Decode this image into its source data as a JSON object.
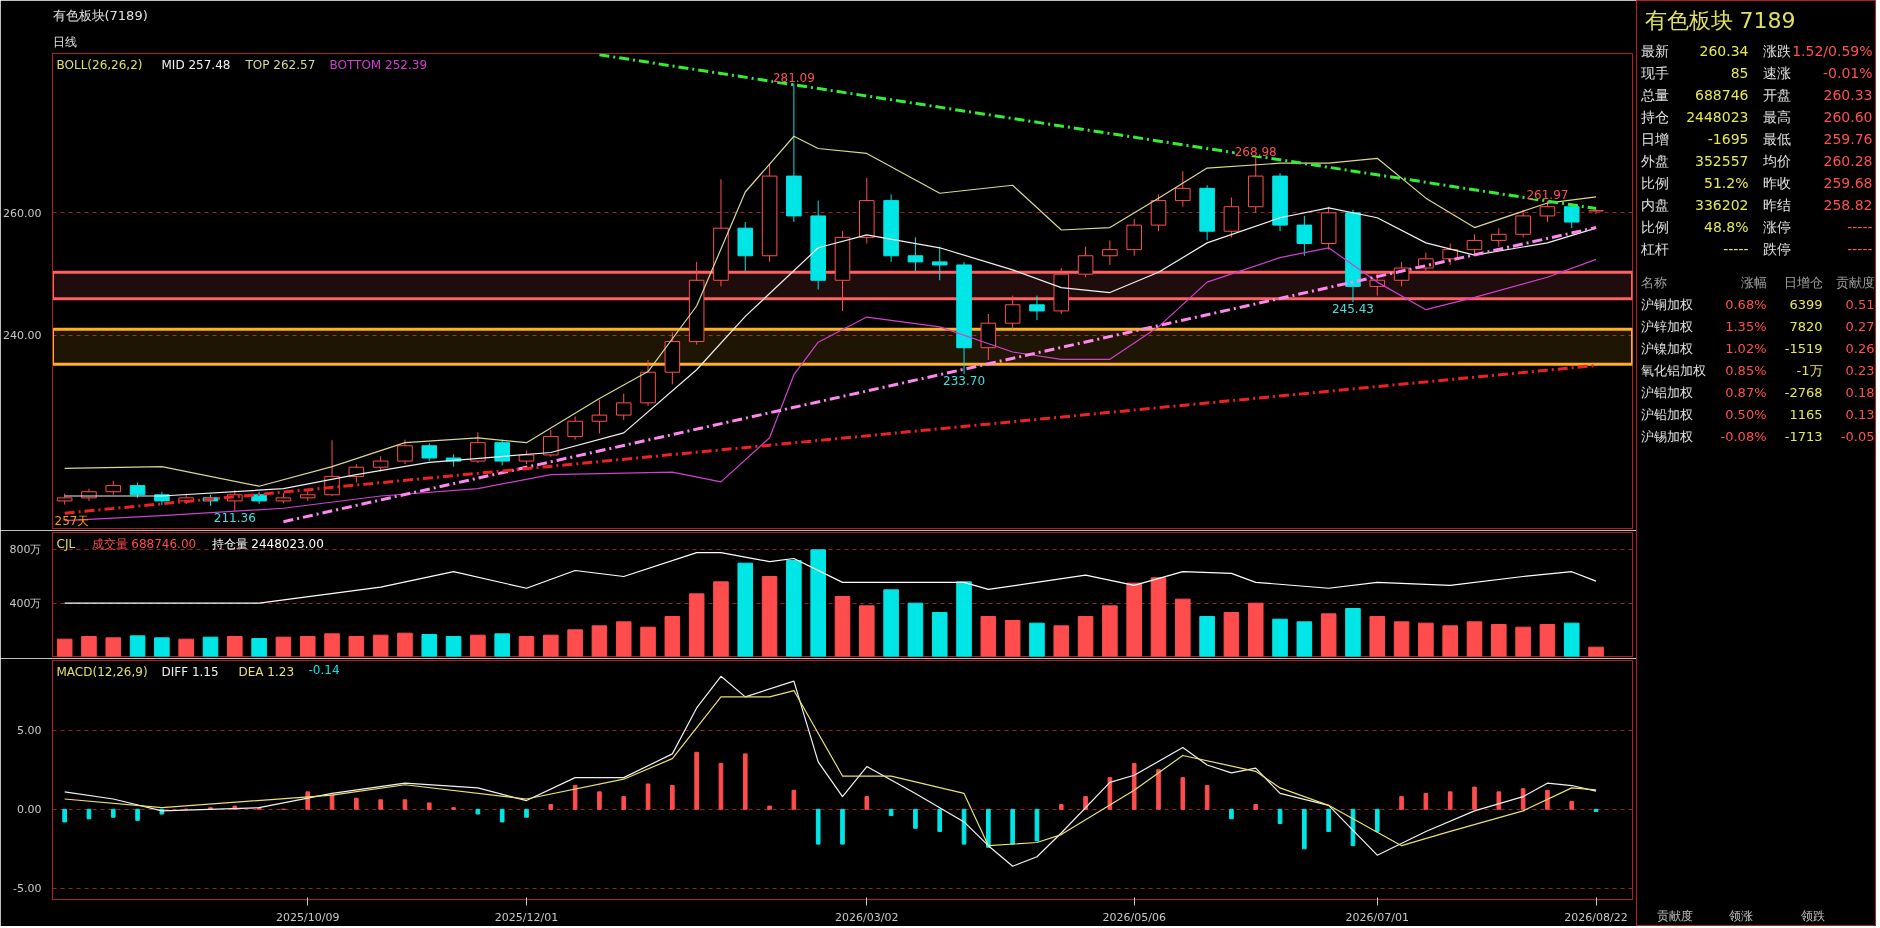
{
  "chart_data": [
    {
      "type": "candlestick",
      "title": "有色板块(7189)",
      "subtitle": "日线",
      "categories": [
        null,
        null,
        null,
        null,
        null,
        null,
        null,
        null,
        null,
        null,
        null,
        null,
        null,
        null,
        null,
        null,
        null,
        null,
        null,
        null,
        null,
        null,
        null,
        null,
        null,
        null,
        null,
        null,
        null,
        null,
        null,
        null,
        null,
        null,
        null,
        null,
        null,
        null,
        null,
        null,
        null,
        null,
        null,
        null,
        null,
        null,
        null,
        null,
        null,
        null,
        null,
        null,
        null,
        null,
        null,
        null,
        null,
        null,
        null,
        null,
        null,
        null,
        null,
        null
      ],
      "ohlc": [
        [
          213.0,
          214.2,
          212.4,
          213.5
        ],
        [
          213.5,
          215.0,
          213.0,
          214.5
        ],
        [
          214.5,
          216.3,
          214.0,
          215.5
        ],
        [
          215.5,
          216.0,
          213.5,
          214.0
        ],
        [
          214.0,
          214.5,
          212.3,
          213.0
        ],
        [
          213.0,
          214.2,
          212.5,
          213.5
        ],
        [
          213.5,
          214.0,
          212.2,
          213.0
        ],
        [
          213.0,
          214.8,
          211.36,
          214.0
        ],
        [
          214.0,
          214.5,
          212.5,
          213.0
        ],
        [
          213.0,
          214.3,
          212.6,
          213.5
        ],
        [
          213.5,
          214.6,
          213.0,
          214.0
        ],
        [
          214.0,
          222.9,
          213.8,
          217.0
        ],
        [
          217.0,
          219.0,
          216.0,
          218.5
        ],
        [
          218.5,
          220.3,
          217.8,
          219.5
        ],
        [
          219.5,
          223.0,
          219.0,
          222.0
        ],
        [
          222.0,
          222.4,
          219.5,
          220.0
        ],
        [
          220.0,
          220.6,
          218.6,
          219.5
        ],
        [
          219.5,
          224.2,
          219.2,
          222.5
        ],
        [
          222.5,
          223.0,
          218.8,
          219.5
        ],
        [
          219.5,
          221.2,
          219.0,
          220.5
        ],
        [
          220.5,
          224.6,
          220.2,
          223.5
        ],
        [
          223.5,
          226.8,
          223.0,
          226.0
        ],
        [
          226.0,
          229.5,
          224.0,
          227.0
        ],
        [
          227.0,
          230.5,
          226.2,
          229.0
        ],
        [
          229.0,
          236.0,
          228.5,
          234.0
        ],
        [
          234.0,
          240.5,
          232.0,
          239.0
        ],
        [
          239.0,
          252.0,
          238.5,
          249.0
        ],
        [
          249.0,
          265.5,
          248.0,
          257.5
        ],
        [
          257.5,
          258.5,
          250.5,
          253.0
        ],
        [
          253.0,
          268.0,
          252.0,
          266.0
        ],
        [
          266.0,
          281.09,
          258.5,
          259.5
        ],
        [
          259.5,
          262.0,
          247.5,
          249.0
        ],
        [
          249.0,
          257.0,
          244.0,
          256.0
        ],
        [
          256.0,
          265.7,
          255.0,
          262.0
        ],
        [
          262.0,
          263.0,
          252.0,
          253.0
        ],
        [
          253.0,
          256.0,
          250.5,
          252.0
        ],
        [
          252.0,
          254.5,
          249.0,
          251.5
        ],
        [
          251.5,
          252.0,
          233.7,
          238.0
        ],
        [
          238.0,
          243.5,
          236.0,
          242.0
        ],
        [
          242.0,
          246.5,
          241.0,
          245.0
        ],
        [
          245.0,
          246.5,
          242.5,
          244.0
        ],
        [
          244.0,
          251.0,
          243.5,
          250.0
        ],
        [
          250.0,
          254.5,
          249.5,
          253.0
        ],
        [
          253.0,
          255.5,
          251.5,
          254.0
        ],
        [
          254.0,
          259.0,
          253.0,
          258.0
        ],
        [
          258.0,
          263.0,
          257.0,
          262.0
        ],
        [
          262.0,
          266.8,
          261.0,
          264.0
        ],
        [
          264.0,
          264.5,
          255.5,
          257.0
        ],
        [
          257.0,
          262.5,
          256.0,
          261.0
        ],
        [
          261.0,
          268.98,
          260.0,
          266.0
        ],
        [
          266.0,
          266.5,
          257.0,
          258.0
        ],
        [
          258.0,
          259.5,
          253.0,
          255.0
        ],
        [
          255.0,
          261.0,
          254.0,
          260.0
        ],
        [
          260.0,
          260.5,
          245.43,
          248.0
        ],
        [
          248.0,
          250.5,
          246.5,
          249.0
        ],
        [
          249.0,
          252.0,
          248.0,
          251.0
        ],
        [
          251.0,
          253.5,
          250.0,
          252.5
        ],
        [
          252.5,
          255.0,
          251.5,
          254.0
        ],
        [
          254.0,
          256.5,
          253.0,
          255.5
        ],
        [
          255.5,
          257.5,
          254.5,
          256.5
        ],
        [
          256.5,
          260.5,
          256.0,
          259.5
        ],
        [
          259.5,
          261.97,
          258.5,
          261.0
        ],
        [
          261.0,
          261.5,
          257.5,
          258.5
        ],
        [
          260.33,
          260.6,
          259.76,
          260.34
        ]
      ],
      "colors": [
        "#ff4d4d",
        "#ff4d4d",
        "#ff4d4d",
        "#00e6e6",
        "#00e6e6",
        "#ff4d4d",
        "#00e6e6",
        "#ff4d4d",
        "#00e6e6",
        "#ff4d4d",
        "#ff4d4d",
        "#ff4d4d",
        "#ff4d4d",
        "#ff4d4d",
        "#ff4d4d",
        "#00e6e6",
        "#00e6e6",
        "#ff4d4d",
        "#00e6e6",
        "#ff4d4d",
        "#ff4d4d",
        "#ff4d4d",
        "#ff4d4d",
        "#ff4d4d",
        "#ff4d4d",
        "#ff4d4d",
        "#ff4d4d",
        "#ff4d4d",
        "#00e6e6",
        "#ff4d4d",
        "#00e6e6",
        "#00e6e6",
        "#ff4d4d",
        "#ff4d4d",
        "#00e6e6",
        "#00e6e6",
        "#00e6e6",
        "#00e6e6",
        "#ff4d4d",
        "#ff4d4d",
        "#00e6e6",
        "#ff4d4d",
        "#ff4d4d",
        "#ff4d4d",
        "#ff4d4d",
        "#ff4d4d",
        "#ff4d4d",
        "#00e6e6",
        "#ff4d4d",
        "#ff4d4d",
        "#00e6e6",
        "#00e6e6",
        "#ff4d4d",
        "#00e6e6",
        "#ff4d4d",
        "#ff4d4d",
        "#ff4d4d",
        "#ff4d4d",
        "#ff4d4d",
        "#ff4d4d",
        "#ff4d4d",
        "#ff4d4d",
        "#00e6e6",
        "#ff4d4d"
      ],
      "ylim": [
        208.5,
        286
      ],
      "yticks": [
        {
          "value": 240,
          "label": "240.00"
        },
        {
          "value": 260,
          "label": "260.00"
        }
      ],
      "tick_labels": "y",
      "grid": "y",
      "legend": "top left",
      "series": [
        {
          "type": "line",
          "name": "MID 257.48",
          "color": "#f0f0f0",
          "values": [
            213.8,
            null,
            null,
            null,
            213.8,
            null,
            null,
            null,
            null,
            215,
            null,
            null,
            217.3,
            null,
            null,
            219.3,
            null,
            null,
            null,
            null,
            220.9,
            null,
            null,
            224.1,
            null,
            null,
            234.4,
            null,
            243.1,
            null,
            null,
            254.3,
            null,
            256.4,
            null,
            null,
            254.3,
            null,
            null,
            250.7,
            null,
            247.8,
            null,
            247,
            null,
            250.3,
            null,
            255.1,
            null,
            null,
            259.2,
            null,
            260.8,
            null,
            259.2,
            null,
            255.1,
            null,
            253.1,
            null,
            null,
            255.1,
            null,
            257.5
          ]
        },
        {
          "type": "line",
          "name": "TOP 262.57",
          "color": "#d8d890",
          "values": [
            218.3,
            null,
            null,
            null,
            218.6,
            null,
            null,
            null,
            215.4,
            null,
            null,
            218.6,
            null,
            null,
            222.5,
            null,
            null,
            223.3,
            null,
            222.5,
            null,
            null,
            229.7,
            null,
            234.1,
            null,
            244.8,
            null,
            263.4,
            null,
            272.5,
            270.5,
            null,
            269.7,
            null,
            null,
            263.2,
            null,
            null,
            264.5,
            null,
            257.2,
            null,
            257.6,
            null,
            262.4,
            null,
            267.3,
            null,
            null,
            268.1,
            null,
            268.1,
            null,
            268.9,
            null,
            262.4,
            null,
            257.6,
            null,
            null,
            261.6,
            null,
            262.6
          ]
        },
        {
          "type": "line",
          "name": "BOTTOM 252.39",
          "color": "#d040d0",
          "values": [
            209.8,
            null,
            null,
            null,
            210.6,
            null,
            null,
            null,
            null,
            211.8,
            null,
            null,
            null,
            213.8,
            null,
            null,
            null,
            215,
            null,
            null,
            217.3,
            null,
            null,
            null,
            null,
            217.7,
            null,
            216.1,
            null,
            223.3,
            233.6,
            238.9,
            null,
            243,
            null,
            null,
            241.4,
            null,
            null,
            237.3,
            null,
            236.1,
            null,
            236.1,
            null,
            241.4,
            null,
            248.7,
            null,
            null,
            252.7,
            null,
            254.3,
            null,
            248.7,
            null,
            244.2,
            null,
            246.2,
            null,
            null,
            249.5,
            null,
            252.4
          ]
        },
        {
          "type": "line",
          "color": "#33ee33",
          "line_style": "dashed",
          "values": [
            null,
            null,
            null,
            null,
            null,
            null,
            null,
            null,
            null,
            null,
            null,
            null,
            null,
            null,
            null,
            null,
            null,
            null,
            null,
            null,
            null,
            null,
            285.8,
            null,
            null,
            null,
            null,
            null,
            null,
            null,
            null,
            null,
            null,
            null,
            null,
            null,
            null,
            null,
            null,
            null,
            null,
            null,
            null,
            null,
            null,
            null,
            null,
            null,
            null,
            null,
            null,
            null,
            null,
            null,
            null,
            null,
            null,
            null,
            null,
            null,
            null,
            null,
            null,
            260.7
          ]
        },
        {
          "type": "line",
          "color": "#ff88ee",
          "line_style": "dashed",
          "values": [
            null,
            null,
            null,
            null,
            null,
            null,
            null,
            null,
            null,
            209.6,
            null,
            null,
            null,
            null,
            null,
            null,
            null,
            null,
            null,
            null,
            null,
            null,
            null,
            null,
            null,
            null,
            null,
            null,
            null,
            null,
            null,
            null,
            null,
            null,
            null,
            null,
            null,
            null,
            null,
            null,
            null,
            null,
            null,
            null,
            null,
            null,
            null,
            null,
            null,
            null,
            null,
            null,
            null,
            null,
            null,
            null,
            null,
            null,
            null,
            null,
            null,
            null,
            null,
            257.6
          ]
        },
        {
          "type": "line",
          "color": "#ee2222",
          "line_style": "dashed",
          "values": [
            211.0,
            null,
            null,
            null,
            null,
            null,
            null,
            null,
            null,
            null,
            null,
            null,
            null,
            null,
            null,
            null,
            null,
            null,
            null,
            null,
            null,
            null,
            null,
            null,
            null,
            null,
            null,
            null,
            null,
            null,
            null,
            null,
            null,
            null,
            null,
            null,
            null,
            null,
            null,
            null,
            null,
            null,
            null,
            null,
            null,
            null,
            null,
            null,
            null,
            null,
            null,
            null,
            null,
            null,
            null,
            null,
            null,
            null,
            null,
            null,
            null,
            null,
            null,
            235.1
          ]
        }
      ],
      "bands": [
        {
          "axis": "y",
          "from": 246.0,
          "to": 250.3,
          "color": "#ff6060"
        },
        {
          "axis": "y",
          "from": 235.3,
          "to": 241.0,
          "color": "#ffb020"
        }
      ],
      "annotations": [
        "BOLL(26,26,2)",
        "257天",
        {
          "text": "281.09",
          "y": 281.09
        },
        {
          "text": "268.98",
          "y": 268.98
        },
        {
          "text": "261.97",
          "y": 261.97
        },
        {
          "text": "233.70",
          "y": 233.7
        },
        {
          "text": "245.43",
          "y": 245.43
        },
        {
          "text": "211.36",
          "y": 211.36
        }
      ]
    },
    {
      "type": "bar",
      "categories": [
        null,
        null,
        null,
        null,
        null,
        null,
        null,
        null,
        null,
        null,
        null,
        null,
        null,
        null,
        null,
        null,
        null,
        null,
        null,
        null,
        null,
        null,
        null,
        null,
        null,
        null,
        null,
        null,
        null,
        null,
        null,
        null,
        null,
        null,
        null,
        null,
        null,
        null,
        null,
        null,
        null,
        null,
        null,
        null,
        null,
        null,
        null,
        null,
        null,
        null,
        null,
        null,
        null,
        null,
        null,
        null,
        null,
        null,
        null,
        null,
        null,
        null,
        null,
        null
      ],
      "ylim": [
        0,
        930
      ],
      "yticks": [
        {
          "value": 400,
          "label": "400万"
        },
        {
          "value": 800,
          "label": "800万"
        }
      ],
      "tick_labels": "y",
      "grid": "y",
      "legend": "top left",
      "annotations": [
        "CJL"
      ],
      "series": [
        {
          "name": "成交量 688746.00",
          "values": [
            130,
            150,
            140,
            155,
            140,
            130,
            145,
            150,
            135,
            145,
            150,
            170,
            150,
            160,
            175,
            165,
            150,
            160,
            170,
            150,
            160,
            200,
            230,
            260,
            220,
            300,
            470,
            560,
            700,
            600,
            720,
            800,
            450,
            380,
            500,
            400,
            330,
            560,
            300,
            270,
            250,
            230,
            300,
            380,
            550,
            590,
            430,
            300,
            330,
            400,
            280,
            260,
            320,
            360,
            300,
            260,
            250,
            230,
            260,
            240,
            220,
            240,
            250,
            70
          ],
          "colors": [
            "#ff4d4d",
            "#ff4d4d",
            "#ff4d4d",
            "#00e6e6",
            "#00e6e6",
            "#ff4d4d",
            "#00e6e6",
            "#ff4d4d",
            "#00e6e6",
            "#ff4d4d",
            "#ff4d4d",
            "#ff4d4d",
            "#ff4d4d",
            "#ff4d4d",
            "#ff4d4d",
            "#00e6e6",
            "#00e6e6",
            "#ff4d4d",
            "#00e6e6",
            "#ff4d4d",
            "#ff4d4d",
            "#ff4d4d",
            "#ff4d4d",
            "#ff4d4d",
            "#ff4d4d",
            "#ff4d4d",
            "#ff4d4d",
            "#ff4d4d",
            "#00e6e6",
            "#ff4d4d",
            "#00e6e6",
            "#00e6e6",
            "#ff4d4d",
            "#ff4d4d",
            "#00e6e6",
            "#00e6e6",
            "#00e6e6",
            "#00e6e6",
            "#ff4d4d",
            "#ff4d4d",
            "#00e6e6",
            "#ff4d4d",
            "#ff4d4d",
            "#ff4d4d",
            "#ff4d4d",
            "#ff4d4d",
            "#ff4d4d",
            "#00e6e6",
            "#ff4d4d",
            "#ff4d4d",
            "#00e6e6",
            "#00e6e6",
            "#ff4d4d",
            "#00e6e6",
            "#ff4d4d",
            "#ff4d4d",
            "#ff4d4d",
            "#ff4d4d",
            "#ff4d4d",
            "#ff4d4d",
            "#ff4d4d",
            "#ff4d4d",
            "#00e6e6",
            "#ff4d4d"
          ]
        },
        {
          "type": "line",
          "name": "持仓量 2448023.00",
          "color": "#ffffff",
          "values": [
            400,
            null,
            null,
            null,
            null,
            null,
            null,
            null,
            400,
            null,
            null,
            null,
            null,
            520,
            null,
            null,
            636,
            null,
            null,
            512,
            null,
            645,
            null,
            600,
            null,
            null,
            779,
            779,
            null,
            712,
            735,
            null,
            556,
            null,
            null,
            null,
            null,
            556,
            503,
            null,
            null,
            null,
            610,
            null,
            534,
            null,
            636,
            null,
            623,
            556,
            null,
            null,
            512,
            null,
            556,
            null,
            null,
            534,
            null,
            null,
            600,
            null,
            636,
            565
          ]
        }
      ]
    },
    {
      "type": "bar",
      "categories": [
        null,
        null,
        null,
        null,
        null,
        null,
        null,
        null,
        null,
        null,
        "2025/10/09",
        null,
        null,
        null,
        null,
        null,
        null,
        null,
        null,
        "2025/12/01",
        null,
        null,
        null,
        null,
        null,
        null,
        null,
        null,
        null,
        null,
        null,
        null,
        null,
        "2026/03/02",
        null,
        null,
        null,
        null,
        null,
        null,
        null,
        null,
        null,
        null,
        "2026/05/06",
        null,
        null,
        null,
        null,
        null,
        null,
        null,
        null,
        null,
        "2026/07/01",
        null,
        null,
        null,
        null,
        null,
        null,
        null,
        null,
        "2026/08/22"
      ],
      "ylim": [
        -5.7,
        9.4
      ],
      "yticks": [
        {
          "value": -5,
          "label": "-5.00"
        },
        {
          "value": 0,
          "label": "0.00"
        },
        {
          "value": 5,
          "label": "5.00"
        }
      ],
      "grid": "y",
      "legend": "top left",
      "annotations": [
        "MACD(12,26,9)"
      ],
      "series": [
        {
          "type": "line",
          "name": "DIFF 1.15",
          "color": "#f0f0f0",
          "values": [
            1.1,
            null,
            0.65,
            null,
            -0.1,
            null,
            null,
            null,
            0.1,
            null,
            null,
            1.0,
            null,
            null,
            1.65,
            null,
            null,
            1.35,
            null,
            0.55,
            null,
            2.0,
            null,
            2.0,
            null,
            3.5,
            6.4,
            8.4,
            7.1,
            null,
            8.1,
            3.0,
            0.8,
            2.7,
            null,
            1.0,
            null,
            -0.8,
            -2.3,
            -3.6,
            -3.0,
            -1.5,
            null,
            1.7,
            2.15,
            null,
            3.9,
            2.8,
            2.3,
            2.6,
            1.0,
            null,
            0.25,
            null,
            -2.9,
            null,
            -1.4,
            null,
            -0.1,
            null,
            0.8,
            1.65,
            1.5,
            1.15
          ]
        },
        {
          "type": "line",
          "name": "DEA 1.23",
          "color": "#e8e070",
          "values": [
            0.65,
            null,
            null,
            null,
            0.1,
            null,
            null,
            null,
            null,
            null,
            null,
            0.9,
            null,
            null,
            1.55,
            null,
            null,
            null,
            null,
            0.65,
            null,
            null,
            null,
            1.9,
            null,
            3.2,
            null,
            7.1,
            null,
            7.1,
            7.5,
            null,
            2.1,
            null,
            2.1,
            null,
            null,
            1.0,
            -2.3,
            null,
            -2.1,
            -1.6,
            null,
            null,
            1.2,
            null,
            3.4,
            null,
            null,
            2.4,
            1.35,
            null,
            0.25,
            null,
            null,
            -2.3,
            null,
            -1.4,
            null,
            null,
            -0.1,
            null,
            1.35,
            1.23
          ]
        },
        {
          "name": "-0.14",
          "values": [
            -0.8,
            -0.6,
            -0.5,
            -0.7,
            -0.3,
            0,
            0.1,
            0.2,
            0.1,
            0,
            1.1,
            0.9,
            0.7,
            0.6,
            0.6,
            0.4,
            0.1,
            -0.3,
            -0.8,
            -0.5,
            0.3,
            1.5,
            1.1,
            0.8,
            1.6,
            1.5,
            3.6,
            2.9,
            3.5,
            0.2,
            1.2,
            -2.2,
            -2.2,
            0.8,
            -0.4,
            -1.2,
            -1.4,
            -2.2,
            -2.4,
            -2.2,
            -2.0,
            0.3,
            0.8,
            2.0,
            2.9,
            2.5,
            2.0,
            1.5,
            -0.6,
            0.3,
            -0.9,
            -2.5,
            -1.4,
            -2.3,
            -1.4,
            0.8,
            1.0,
            1.1,
            1.4,
            1.1,
            1.3,
            1.2,
            0.5,
            -0.14
          ],
          "colors": [
            "#00e6e6",
            "#00e6e6",
            "#00e6e6",
            "#00e6e6",
            "#00e6e6",
            "#ff4d4d",
            "#ff4d4d",
            "#ff4d4d",
            "#ff4d4d",
            "#ff4d4d",
            "#ff4d4d",
            "#ff4d4d",
            "#ff4d4d",
            "#ff4d4d",
            "#ff4d4d",
            "#ff4d4d",
            "#ff4d4d",
            "#00e6e6",
            "#00e6e6",
            "#00e6e6",
            "#ff4d4d",
            "#ff4d4d",
            "#ff4d4d",
            "#ff4d4d",
            "#ff4d4d",
            "#ff4d4d",
            "#ff4d4d",
            "#ff4d4d",
            "#ff4d4d",
            "#ff4d4d",
            "#ff4d4d",
            "#00e6e6",
            "#00e6e6",
            "#ff4d4d",
            "#00e6e6",
            "#00e6e6",
            "#00e6e6",
            "#00e6e6",
            "#00e6e6",
            "#00e6e6",
            "#00e6e6",
            "#ff4d4d",
            "#ff4d4d",
            "#ff4d4d",
            "#ff4d4d",
            "#ff4d4d",
            "#ff4d4d",
            "#ff4d4d",
            "#00e6e6",
            "#ff4d4d",
            "#00e6e6",
            "#00e6e6",
            "#00e6e6",
            "#00e6e6",
            "#00e6e6",
            "#ff4d4d",
            "#ff4d4d",
            "#ff4d4d",
            "#ff4d4d",
            "#ff4d4d",
            "#ff4d4d",
            "#ff4d4d",
            "#ff4d4d",
            "#00e6e6"
          ]
        }
      ]
    },
    {
      "type": "other",
      "title": "有色板块 7189",
      "annotations": [
        "最新",
        "260.34",
        "涨跌",
        "1.52/0.59%",
        "现手",
        "85",
        "速涨",
        "-0.01%",
        "总量",
        "688746",
        "开盘",
        "260.33",
        "持仓",
        "2448023",
        "最高",
        "260.60",
        "日增",
        "-1695",
        "最低",
        "259.76",
        "外盘",
        "352557",
        "均价",
        "260.28",
        "比例",
        "51.2%",
        "昨收",
        "259.68",
        "内盘",
        "336202",
        "昨结",
        "258.82",
        "比例",
        "48.8%",
        "涨停",
        "-----",
        "杠杆",
        "-----",
        "跌停",
        "-----",
        "名称",
        "涨幅",
        "日增仓",
        "贡献度",
        "沪铜加权",
        "0.68%",
        "6399",
        "0.51",
        "沪锌加权",
        "1.35%",
        "7820",
        "0.27",
        "沪镍加权",
        "1.02%",
        "-1519",
        "0.26",
        "氧化铝加权",
        "0.85%",
        "-1万",
        "0.23",
        "沪铝加权",
        "0.87%",
        "-2768",
        "0.18",
        "沪铅加权",
        "0.50%",
        "1165",
        "0.13",
        "沪锡加权",
        "-0.08%",
        "-1713",
        "-0.05",
        "贡献度",
        "领涨",
        "领跌"
      ]
    }
  ]
}
